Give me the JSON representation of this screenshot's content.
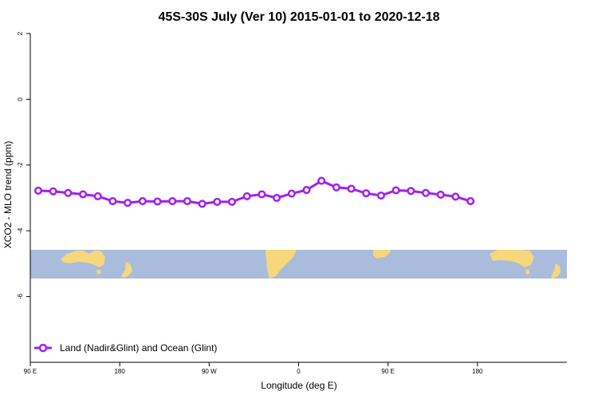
{
  "chart_data": {
    "type": "line",
    "title": "45S-30S July (Ver 10)   2015-01-01 to 2020-12-18",
    "xlabel": "Longitude (deg E)",
    "ylabel": "XCO2 - MLO trend (ppm)",
    "xlim": [
      -90,
      180
    ],
    "ylim": [
      -8,
      2
    ],
    "x_ticks": [
      {
        "value": -90,
        "label": "90 E"
      },
      {
        "value": -45,
        "label": "180"
      },
      {
        "value": 0,
        "label": "90 W"
      },
      {
        "value": 45,
        "label": "0"
      },
      {
        "value": 90,
        "label": "90 E"
      },
      {
        "value": 135,
        "label": "180"
      }
    ],
    "y_ticks": [
      2,
      0,
      -2,
      -4,
      -6
    ],
    "background_strip": {
      "description": "world map band (ocean/land)",
      "ocean_color": "#a9bcdb",
      "land_color": "#f7d77b",
      "y_range": [
        -5.45,
        -4.6
      ]
    },
    "series": [
      {
        "name": "Land (Nadir&Glint) and Ocean (Glint)",
        "color": "#a020f0",
        "x": [
          -86,
          -78.5,
          -71,
          -63.5,
          -56,
          -48.5,
          -41,
          -33.5,
          -26,
          -18.5,
          -11,
          -3.5,
          4,
          11.5,
          19,
          26.5,
          34,
          41.5,
          49,
          56.5,
          64,
          71.5,
          79,
          86.5,
          94,
          101.5,
          109,
          116.5,
          124,
          131.5
        ],
        "values": [
          -2.78,
          -2.8,
          -2.85,
          -2.89,
          -2.95,
          -3.1,
          -3.15,
          -3.1,
          -3.11,
          -3.1,
          -3.1,
          -3.18,
          -3.12,
          -3.12,
          -2.95,
          -2.89,
          -3.0,
          -2.87,
          -2.76,
          -2.48,
          -2.68,
          -2.72,
          -2.86,
          -2.93,
          -2.77,
          -2.79,
          -2.85,
          -2.9,
          -2.96,
          -3.1
        ]
      }
    ],
    "legend_position": "bottom-left",
    "grid": false
  }
}
